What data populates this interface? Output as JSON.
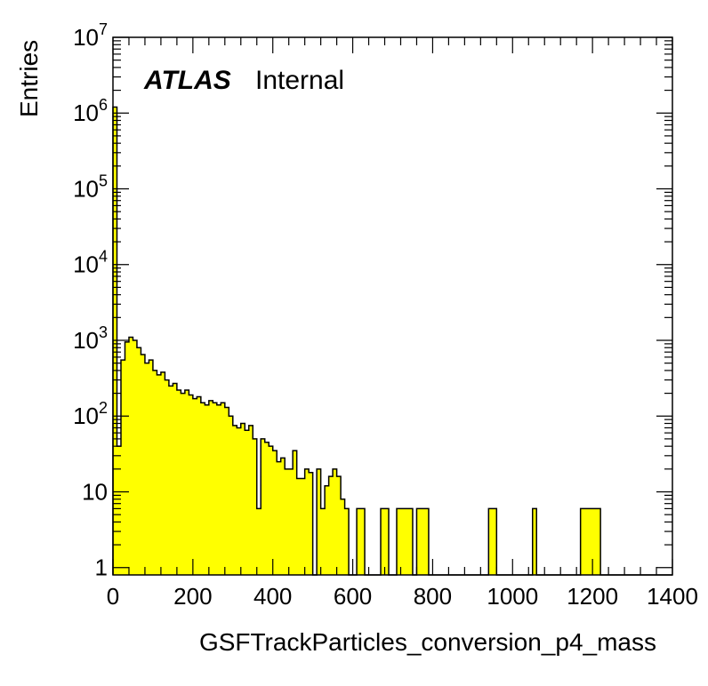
{
  "chart_data": {
    "type": "bar",
    "xlabel": "GSFTrackParticles_conversion_p4_mass",
    "ylabel": "Entries",
    "label_bold": "ATLAS",
    "label_text": "Internal",
    "fill_color": "#ffff00",
    "line_color": "#000000",
    "xlim": [
      0,
      1400
    ],
    "ylim": [
      0.8,
      10000000
    ],
    "y_scale": "log",
    "bin_width": 10,
    "x_ticks": [
      "0",
      "200",
      "400",
      "600",
      "800",
      "1000",
      "1200",
      "1400"
    ],
    "y_ticks": [
      {
        "base": "1",
        "exp": ""
      },
      {
        "base": "10",
        "exp": ""
      },
      {
        "base": "10",
        "exp": "2"
      },
      {
        "base": "10",
        "exp": "3"
      },
      {
        "base": "10",
        "exp": "4"
      },
      {
        "base": "10",
        "exp": "5"
      },
      {
        "base": "10",
        "exp": "6"
      },
      {
        "base": "10",
        "exp": "7"
      }
    ],
    "bin_edges_start": 0,
    "values": [
      1200000,
      40,
      550,
      950,
      1100,
      1000,
      800,
      650,
      500,
      550,
      400,
      350,
      380,
      300,
      250,
      270,
      220,
      200,
      220,
      190,
      170,
      180,
      150,
      140,
      160,
      150,
      140,
      150,
      130,
      100,
      75,
      70,
      80,
      65,
      75,
      50,
      6,
      50,
      45,
      40,
      35,
      25,
      28,
      20,
      20,
      35,
      15,
      15,
      20,
      18,
      0,
      20,
      6,
      12,
      16,
      20,
      16,
      8,
      6,
      0,
      0,
      6,
      6,
      0,
      0,
      0,
      0,
      6,
      6,
      0,
      0,
      6,
      6,
      6,
      6,
      0,
      6,
      6,
      6,
      0,
      0,
      0,
      0,
      0,
      0,
      0,
      0,
      0,
      0,
      0,
      0,
      0,
      0,
      0,
      6,
      6,
      0,
      0,
      0,
      0,
      0,
      0,
      0,
      0,
      0,
      6,
      0,
      0,
      0,
      0,
      0,
      0,
      0,
      0,
      0,
      0,
      0,
      6,
      6,
      6,
      6,
      6,
      0,
      0,
      0,
      0,
      0,
      0,
      0,
      0,
      0,
      0,
      0,
      0,
      0,
      0,
      0,
      0,
      0,
      0
    ]
  }
}
